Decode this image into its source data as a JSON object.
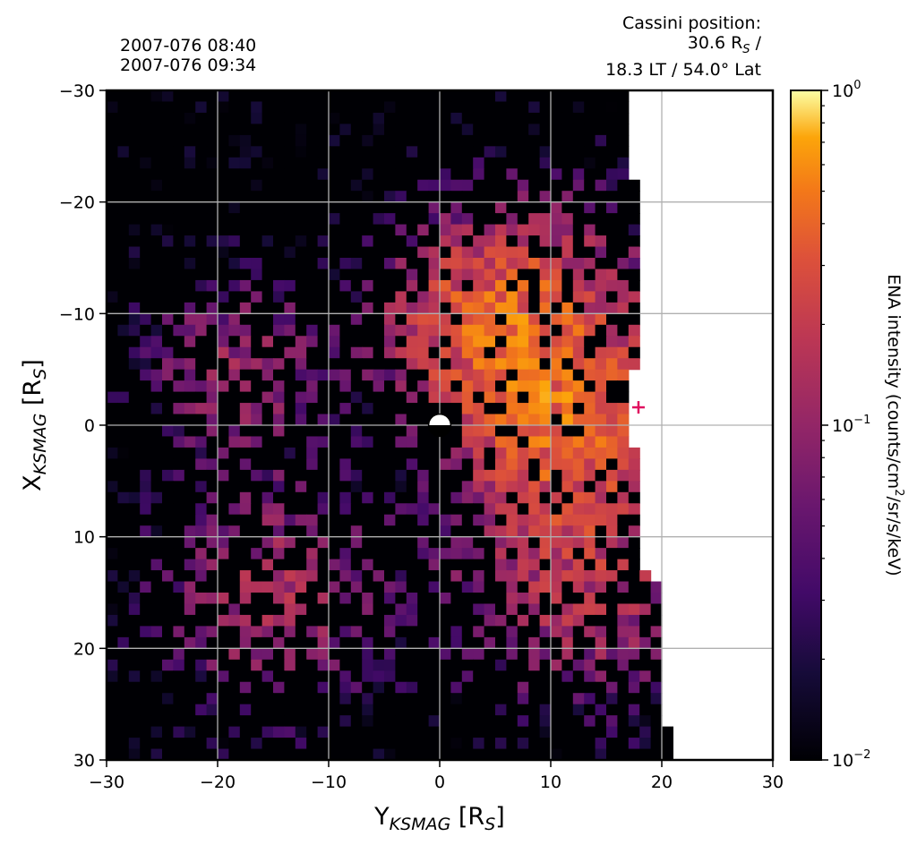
{
  "header": {
    "time_start": "2007-076 08:40",
    "time_end": "2007-076 09:34",
    "position_title": "Cassini position:",
    "position_radius_value": "30.6 R",
    "position_radius_sub": "S",
    "position_radius_suffix": " /",
    "position_lt_lat": "18.3 LT / 54.0° Lat"
  },
  "colors": {
    "background_map": "#000004",
    "missing": "#ffffff",
    "grid": "#b0b0b0",
    "planet_day": "#ffffff",
    "planet_night": "#000000",
    "cassini_marker": "#e0115f",
    "colormap": "inferno"
  },
  "chart_data": {
    "type": "heatmap",
    "xlabel": {
      "main": "Y",
      "sub": "KSMAG",
      "unit_open": " [R",
      "unit_sub": "S",
      "unit_close": "]"
    },
    "ylabel": {
      "main": "X",
      "sub": "KSMAG",
      "unit_open": " [R",
      "unit_sub": "S",
      "unit_close": "]"
    },
    "xlim": [
      -30,
      30
    ],
    "ylim": [
      -30,
      30
    ],
    "y_inverted": true,
    "xticks": [
      "−30",
      "−20",
      "−10",
      "0",
      "10",
      "20",
      "30"
    ],
    "xtick_values": [
      -30,
      -20,
      -10,
      0,
      10,
      20,
      30
    ],
    "yticks": [
      "−30",
      "−20",
      "−10",
      "0",
      "10",
      "20",
      "30"
    ],
    "ytick_values": [
      -30,
      -20,
      -10,
      0,
      10,
      20,
      30
    ],
    "grid": true,
    "colorbar": {
      "label": "ENA intensity (counts/cm²/sr/s/keV)",
      "label_parts": [
        "ENA intensity (counts/cm",
        "2",
        "/sr/s/keV)"
      ],
      "scale": "log",
      "min": 0.01,
      "max": 1,
      "ticks": [
        {
          "value": 1,
          "base": "10",
          "exp": "0"
        },
        {
          "value": 0.1,
          "base": "10",
          "exp": "−1"
        },
        {
          "value": 0.01,
          "base": "10",
          "exp": "−2"
        }
      ]
    },
    "grid_resolution_Rs": 1,
    "coverage_edge_x_at_y": [
      {
        "y": -30,
        "x": 17.0
      },
      {
        "y": -22,
        "x": 17.0
      },
      {
        "y": -22,
        "x": 18.0
      },
      {
        "y": -5,
        "x": 18.0
      },
      {
        "y": -5,
        "x": 17.0
      },
      {
        "y": 2,
        "x": 17.0
      },
      {
        "y": 2,
        "x": 18.0
      },
      {
        "y": 13,
        "x": 18.0
      },
      {
        "y": 13,
        "x": 19.0
      },
      {
        "y": 14,
        "x": 20.0
      },
      {
        "y": 27,
        "x": 20.0
      },
      {
        "y": 27,
        "x": 21.0
      },
      {
        "y": 30,
        "x": 21.0
      }
    ],
    "hotspots": [
      {
        "y": 11,
        "x": 0,
        "intensity": 0.32,
        "spread": 5
      },
      {
        "y": 9,
        "x": -9,
        "intensity": 0.26,
        "spread": 6
      },
      {
        "y": 3,
        "x": -9,
        "intensity": 0.22,
        "spread": 5
      },
      {
        "y": 13,
        "x": 12,
        "intensity": 0.18,
        "spread": 7
      },
      {
        "y": -15,
        "x": 15,
        "intensity": 0.12,
        "spread": 6
      },
      {
        "y": -18,
        "x": -5,
        "intensity": 0.1,
        "spread": 5
      }
    ],
    "planet": {
      "y": 0,
      "x": 0,
      "radius": 1
    },
    "cassini_marker": {
      "y": 17.9,
      "x": -1.6,
      "symbol": "+"
    }
  }
}
